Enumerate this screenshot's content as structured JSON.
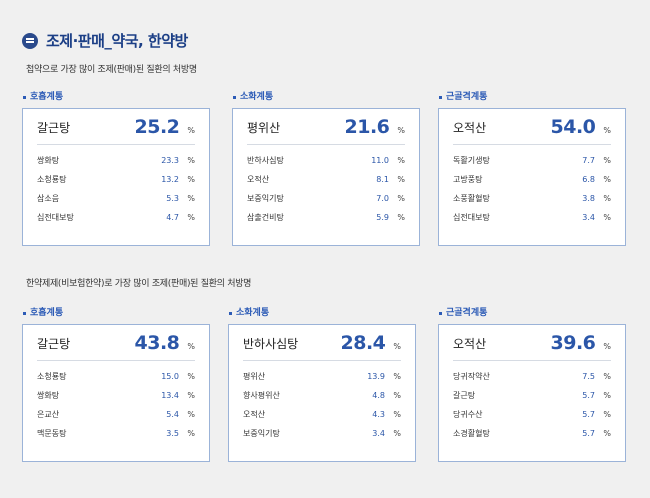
{
  "page_title": "조제·판매_약국, 한약방",
  "sections": [
    {
      "description": "첩약으로 가장 많이 조제(판매)된 질환의 처방명",
      "groups": [
        {
          "label": "호흡계통",
          "main": {
            "name": "갈근탕",
            "value": "25.2",
            "unit": "%"
          },
          "items": [
            {
              "name": "쌍화탕",
              "value": "23.3",
              "unit": "%"
            },
            {
              "name": "소청룡탕",
              "value": "13.2",
              "unit": "%"
            },
            {
              "name": "삼소음",
              "value": "5.3",
              "unit": "%"
            },
            {
              "name": "십전대보탕",
              "value": "4.7",
              "unit": "%"
            }
          ]
        },
        {
          "label": "소화계통",
          "main": {
            "name": "평위산",
            "value": "21.6",
            "unit": "%"
          },
          "items": [
            {
              "name": "반하사심탕",
              "value": "11.0",
              "unit": "%"
            },
            {
              "name": "오적산",
              "value": "8.1",
              "unit": "%"
            },
            {
              "name": "보중익기탕",
              "value": "7.0",
              "unit": "%"
            },
            {
              "name": "삼출건비탕",
              "value": "5.9",
              "unit": "%"
            }
          ]
        },
        {
          "label": "근골격계통",
          "main": {
            "name": "오적산",
            "value": "54.0",
            "unit": "%"
          },
          "items": [
            {
              "name": "독활기생탕",
              "value": "7.7",
              "unit": "%"
            },
            {
              "name": "고방풍탕",
              "value": "6.8",
              "unit": "%"
            },
            {
              "name": "소풍활혈탕",
              "value": "3.8",
              "unit": "%"
            },
            {
              "name": "십전대보탕",
              "value": "3.4",
              "unit": "%"
            }
          ]
        }
      ]
    },
    {
      "description": "한약제제(비보험한약)로 가장 많이 조제(판매)된 질환의 처방명",
      "groups": [
        {
          "label": "호흡계통",
          "main": {
            "name": "갈근탕",
            "value": "43.8",
            "unit": "%"
          },
          "items": [
            {
              "name": "소청룡탕",
              "value": "15.0",
              "unit": "%"
            },
            {
              "name": "쌍화탕",
              "value": "13.4",
              "unit": "%"
            },
            {
              "name": "은교산",
              "value": "5.4",
              "unit": "%"
            },
            {
              "name": "맥문동탕",
              "value": "3.5",
              "unit": "%"
            }
          ]
        },
        {
          "label": "소화계통",
          "main": {
            "name": "반하사심탕",
            "value": "28.4",
            "unit": "%"
          },
          "items": [
            {
              "name": "평위산",
              "value": "13.9",
              "unit": "%"
            },
            {
              "name": "향사평위산",
              "value": "4.8",
              "unit": "%"
            },
            {
              "name": "오적산",
              "value": "4.3",
              "unit": "%"
            },
            {
              "name": "보중익기탕",
              "value": "3.4",
              "unit": "%"
            }
          ]
        },
        {
          "label": "근골격계통",
          "main": {
            "name": "오적산",
            "value": "39.6",
            "unit": "%"
          },
          "items": [
            {
              "name": "당귀작약산",
              "value": "7.5",
              "unit": "%"
            },
            {
              "name": "갈근탕",
              "value": "5.7",
              "unit": "%"
            },
            {
              "name": "당귀수산",
              "value": "5.7",
              "unit": "%"
            },
            {
              "name": "소경활혈탕",
              "value": "5.7",
              "unit": "%"
            }
          ]
        }
      ]
    }
  ],
  "icon": "document-list-icon"
}
